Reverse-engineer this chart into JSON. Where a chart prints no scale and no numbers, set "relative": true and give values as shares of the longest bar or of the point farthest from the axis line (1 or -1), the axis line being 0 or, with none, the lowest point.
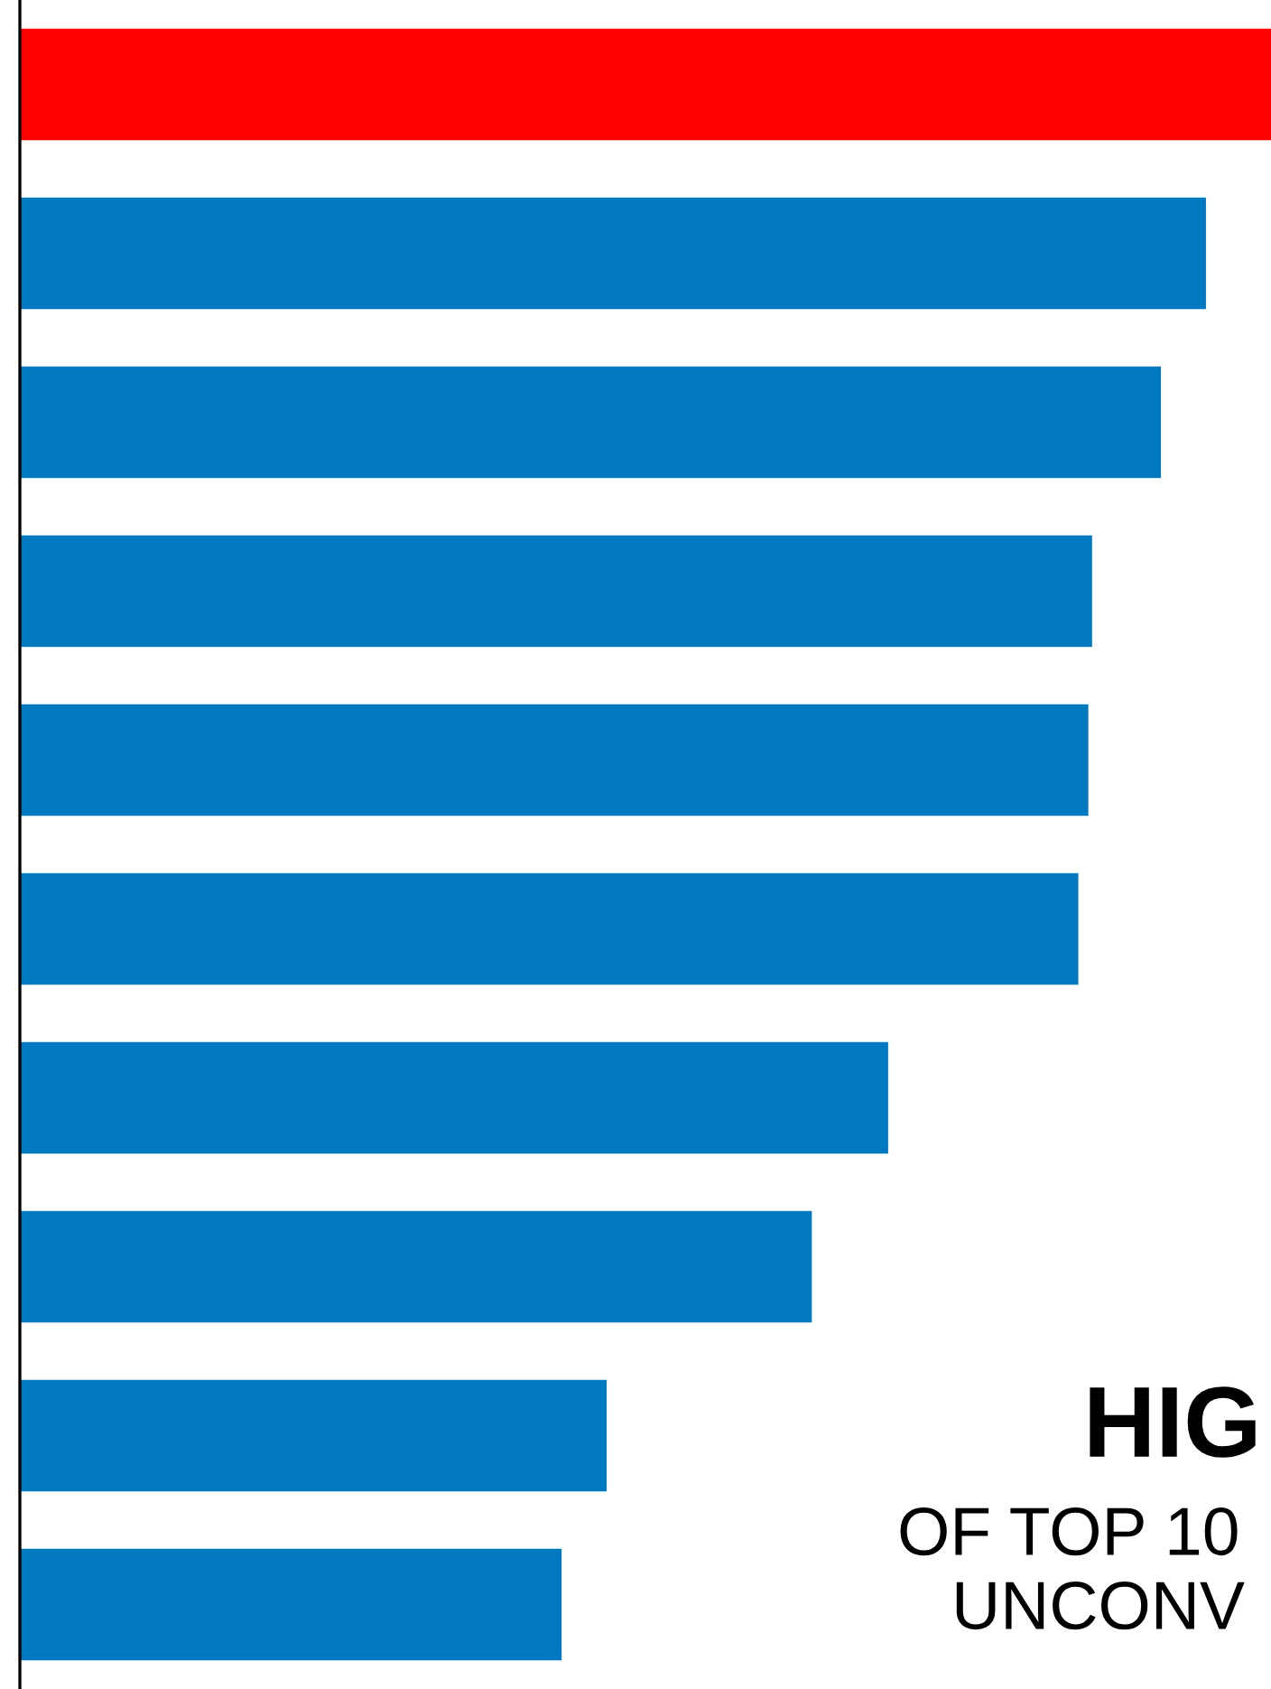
{
  "chart_data": {
    "type": "bar",
    "orientation": "horizontal",
    "relative": true,
    "categories": [
      null,
      null,
      null,
      null,
      null,
      null,
      null,
      null,
      null,
      null
    ],
    "values": [
      1,
      0.948,
      0.912,
      0.857,
      0.854,
      0.846,
      0.694,
      0.633,
      0.469,
      0.433
    ],
    "colors": [
      "#ff0000",
      "#0079c1",
      "#0079c1",
      "#0079c1",
      "#0079c1",
      "#0079c1",
      "#0079c1",
      "#0079c1",
      "#0079c1",
      "#0079c1"
    ],
    "annotations": [
      "HIG",
      "OF TOP 10",
      "UNCONV"
    ],
    "grid": false,
    "legend": false
  }
}
